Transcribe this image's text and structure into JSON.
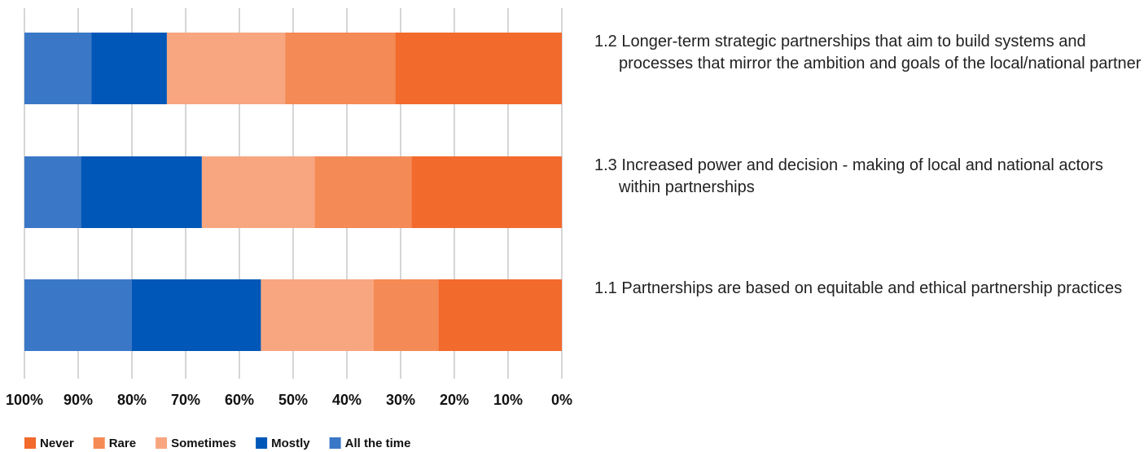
{
  "chart_data": {
    "type": "stacked_barh",
    "categories": [
      "1.2 Longer-term strategic partnerships that aim to build systems and processes that mirror the ambition and goals of the local/national partner",
      "1.3 Increased power and decision - making of local and national actors within partnerships",
      "1.1 Partnerships are based on equitable and ethical partnership practices"
    ],
    "series": [
      {
        "name": "Never",
        "color": "#f26a2c",
        "values": [
          31,
          28,
          23
        ]
      },
      {
        "name": "Rare",
        "color": "#f48a55",
        "values": [
          20.5,
          18,
          12
        ]
      },
      {
        "name": "Sometimes",
        "color": "#f7a680",
        "values": [
          22,
          21,
          21
        ]
      },
      {
        "name": "Mostly",
        "color": "#0057b8",
        "values": [
          14,
          22.5,
          24
        ]
      },
      {
        "name": "All the time",
        "color": "#3a78c7",
        "values": [
          12.5,
          10.5,
          20
        ]
      }
    ],
    "xlim": [
      100,
      0
    ],
    "xticks": [
      {
        "value": 100,
        "label": "100%"
      },
      {
        "value": 90,
        "label": "90%"
      },
      {
        "value": 80,
        "label": "80%"
      },
      {
        "value": 70,
        "label": "70%"
      },
      {
        "value": 60,
        "label": "60%"
      },
      {
        "value": 50,
        "label": "50%"
      },
      {
        "value": 40,
        "label": "40%"
      },
      {
        "value": 30,
        "label": "30%"
      },
      {
        "value": 20,
        "label": "20%"
      },
      {
        "value": 10,
        "label": "10%"
      },
      {
        "value": 0,
        "label": "0%"
      }
    ],
    "grid": true,
    "legend": "bottom-left"
  }
}
